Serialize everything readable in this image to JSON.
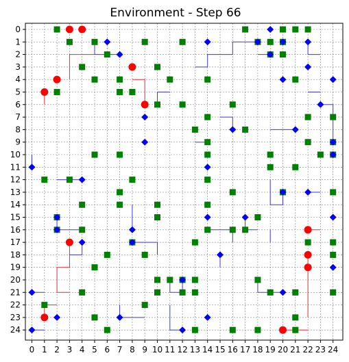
{
  "chart_data": {
    "type": "scatter",
    "title": "Environment - Step 66",
    "xlim": [
      0,
      24
    ],
    "ylim": [
      0,
      24
    ],
    "y_inverted": true,
    "grid": true,
    "x_ticks": [
      "0",
      "1",
      "2",
      "3",
      "4",
      "5",
      "6",
      "7",
      "8",
      "9",
      "10",
      "11",
      "12",
      "13",
      "14",
      "15",
      "16",
      "17",
      "18",
      "19",
      "20",
      "21",
      "22",
      "23",
      "24"
    ],
    "y_ticks": [
      "0",
      "1",
      "2",
      "3",
      "4",
      "5",
      "6",
      "7",
      "8",
      "9",
      "10",
      "11",
      "12",
      "13",
      "14",
      "15",
      "16",
      "17",
      "18",
      "19",
      "20",
      "21",
      "22",
      "23",
      "24"
    ],
    "colors": {
      "red": "#ff0000",
      "green": "#008000",
      "blue": "#0000ff",
      "red_trail": "#e03030",
      "blue_trail": "#3a3ae0",
      "grid": "#808080"
    },
    "series": [
      {
        "marker": "circle",
        "color": "#ff0000",
        "points": [
          [
            3,
            0
          ],
          [
            4,
            0
          ],
          [
            8,
            3
          ],
          [
            2,
            4
          ],
          [
            1,
            5
          ],
          [
            9,
            6
          ],
          [
            22,
            16
          ],
          [
            3,
            17
          ],
          [
            22,
            18
          ],
          [
            22,
            19
          ],
          [
            1,
            23
          ],
          [
            20,
            24
          ]
        ]
      },
      {
        "marker": "square",
        "color": "#008000",
        "points": [
          [
            2,
            0
          ],
          [
            17,
            0
          ],
          [
            20,
            0
          ],
          [
            21,
            0
          ],
          [
            22,
            0
          ],
          [
            3,
            1
          ],
          [
            5,
            1
          ],
          [
            9,
            1
          ],
          [
            12,
            1
          ],
          [
            18,
            1
          ],
          [
            19,
            1
          ],
          [
            20,
            1
          ],
          [
            6,
            2
          ],
          [
            19,
            2
          ],
          [
            20,
            2
          ],
          [
            4,
            3
          ],
          [
            10,
            3
          ],
          [
            5,
            4
          ],
          [
            7,
            4
          ],
          [
            11,
            4
          ],
          [
            14,
            4
          ],
          [
            21,
            4
          ],
          [
            2,
            5
          ],
          [
            7,
            5
          ],
          [
            8,
            5
          ],
          [
            10,
            6
          ],
          [
            12,
            6
          ],
          [
            16,
            6
          ],
          [
            14,
            7
          ],
          [
            22,
            7
          ],
          [
            24,
            7
          ],
          [
            13,
            8
          ],
          [
            17,
            8
          ],
          [
            14,
            9
          ],
          [
            22,
            9
          ],
          [
            24,
            9
          ],
          [
            5,
            10
          ],
          [
            7,
            10
          ],
          [
            14,
            10
          ],
          [
            19,
            10
          ],
          [
            23,
            10
          ],
          [
            24,
            10
          ],
          [
            19,
            11
          ],
          [
            21,
            11
          ],
          [
            1,
            12
          ],
          [
            3,
            12
          ],
          [
            8,
            12
          ],
          [
            14,
            12
          ],
          [
            7,
            13
          ],
          [
            16,
            13
          ],
          [
            20,
            13
          ],
          [
            24,
            13
          ],
          [
            4,
            14
          ],
          [
            7,
            14
          ],
          [
            10,
            14
          ],
          [
            14,
            14
          ],
          [
            2,
            15
          ],
          [
            10,
            15
          ],
          [
            18,
            15
          ],
          [
            2,
            16
          ],
          [
            4,
            16
          ],
          [
            14,
            16
          ],
          [
            16,
            16
          ],
          [
            17,
            16
          ],
          [
            8,
            17
          ],
          [
            13,
            17
          ],
          [
            22,
            17
          ],
          [
            24,
            17
          ],
          [
            6,
            18
          ],
          [
            9,
            18
          ],
          [
            24,
            18
          ],
          [
            5,
            19
          ],
          [
            10,
            20
          ],
          [
            11,
            20
          ],
          [
            12,
            20
          ],
          [
            13,
            20
          ],
          [
            18,
            20
          ],
          [
            4,
            21
          ],
          [
            10,
            21
          ],
          [
            12,
            21
          ],
          [
            13,
            21
          ],
          [
            19,
            21
          ],
          [
            21,
            21
          ],
          [
            24,
            21
          ],
          [
            1,
            22
          ],
          [
            9,
            22
          ],
          [
            5,
            23
          ],
          [
            21,
            23
          ],
          [
            6,
            24
          ],
          [
            13,
            24
          ],
          [
            16,
            24
          ],
          [
            18,
            24
          ],
          [
            21,
            24
          ]
        ]
      },
      {
        "marker": "diamond",
        "color": "#0000ff",
        "points": [
          [
            19,
            0
          ],
          [
            6,
            1
          ],
          [
            14,
            1
          ],
          [
            18,
            1
          ],
          [
            20,
            1
          ],
          [
            22,
            1
          ],
          [
            7,
            2
          ],
          [
            19,
            2
          ],
          [
            22,
            3
          ],
          [
            20,
            4
          ],
          [
            24,
            4
          ],
          [
            23,
            6
          ],
          [
            9,
            7
          ],
          [
            16,
            8
          ],
          [
            21,
            8
          ],
          [
            9,
            9
          ],
          [
            24,
            9
          ],
          [
            24,
            10
          ],
          [
            0,
            11
          ],
          [
            14,
            11
          ],
          [
            4,
            12
          ],
          [
            20,
            13
          ],
          [
            22,
            13
          ],
          [
            2,
            15
          ],
          [
            14,
            15
          ],
          [
            17,
            15
          ],
          [
            24,
            15
          ],
          [
            2,
            16
          ],
          [
            8,
            16
          ],
          [
            4,
            17
          ],
          [
            8,
            17
          ],
          [
            15,
            18
          ],
          [
            24,
            19
          ],
          [
            12,
            20
          ],
          [
            0,
            21
          ],
          [
            20,
            21
          ],
          [
            2,
            23
          ],
          [
            7,
            23
          ],
          [
            14,
            23
          ],
          [
            0,
            24
          ],
          [
            12,
            24
          ]
        ]
      }
    ]
  }
}
